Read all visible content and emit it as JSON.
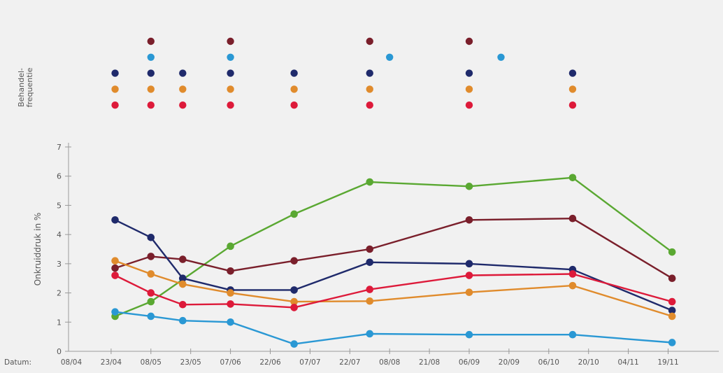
{
  "chart_data": {
    "type": "line",
    "ylabel": "Onkruiddruk in %",
    "xlabel_prefix": "Datum:",
    "frequency_label_line1": "Behandel-",
    "frequency_label_line2": "frequentie",
    "ylim": [
      0,
      7
    ],
    "yticks": [
      "0",
      "1",
      "2",
      "3",
      "4",
      "5",
      "6",
      "7"
    ],
    "x_tick_labels": [
      "08/04",
      "23/04",
      "08/05",
      "23/05",
      "07/06",
      "22/06",
      "07/07",
      "22/07",
      "08/08",
      "21/08",
      "06/09",
      "20/09",
      "06/10",
      "20/10",
      "04/11",
      "19/11"
    ],
    "grid": false,
    "series": [
      {
        "color": "#5aa832",
        "x": [
          1.1,
          2.0,
          4.0,
          5.6,
          7.5,
          10.0,
          12.6,
          15.1
        ],
        "values": [
          1.2,
          1.7,
          3.6,
          4.7,
          5.8,
          5.65,
          5.95,
          3.4
        ]
      },
      {
        "color": "#7a1f2b",
        "x": [
          1.1,
          2.0,
          2.8,
          4.0,
          5.6,
          7.5,
          10.0,
          12.6,
          15.1
        ],
        "values": [
          2.85,
          3.25,
          3.15,
          2.75,
          3.1,
          3.5,
          4.5,
          4.55,
          2.5
        ]
      },
      {
        "color": "#1f2a6b",
        "x": [
          1.1,
          2.0,
          2.8,
          4.0,
          5.6,
          7.5,
          10.0,
          12.6,
          15.1
        ],
        "values": [
          4.5,
          3.9,
          2.5,
          2.1,
          2.1,
          3.05,
          3.0,
          2.8,
          1.4
        ]
      },
      {
        "color": "#e08b2c",
        "x": [
          1.1,
          2.0,
          2.8,
          4.0,
          5.6,
          7.5,
          10.0,
          12.6,
          15.1
        ],
        "values": [
          3.1,
          2.65,
          2.3,
          2.0,
          1.7,
          1.72,
          2.02,
          2.25,
          1.2
        ]
      },
      {
        "color": "#dd1a3a",
        "x": [
          1.1,
          2.0,
          2.8,
          4.0,
          5.6,
          7.5,
          10.0,
          12.6,
          15.1
        ],
        "values": [
          2.6,
          2.0,
          1.6,
          1.62,
          1.5,
          2.12,
          2.6,
          2.65,
          1.7
        ]
      },
      {
        "color": "#2a98d4",
        "x": [
          1.1,
          2.0,
          2.8,
          4.0,
          5.6,
          7.5,
          10.0,
          12.6,
          15.1
        ],
        "values": [
          1.35,
          1.2,
          1.05,
          1.0,
          0.25,
          0.6,
          0.57,
          0.57,
          0.3
        ]
      }
    ],
    "treatment_rows": [
      {
        "color": "#7a1f2b",
        "x": [
          2.0,
          4.0,
          7.5,
          10.0
        ]
      },
      {
        "color": "#2a98d4",
        "x": [
          2.0,
          4.0,
          8.0,
          10.8
        ]
      },
      {
        "color": "#1f2a6b",
        "x": [
          1.1,
          2.0,
          2.8,
          4.0,
          5.6,
          7.5,
          10.0,
          12.6
        ]
      },
      {
        "color": "#e08b2c",
        "x": [
          1.1,
          2.0,
          2.8,
          4.0,
          5.6,
          7.5,
          10.0,
          12.6
        ]
      },
      {
        "color": "#dd1a3a",
        "x": [
          1.1,
          2.0,
          2.8,
          4.0,
          5.6,
          7.5,
          10.0,
          12.6
        ]
      }
    ]
  }
}
